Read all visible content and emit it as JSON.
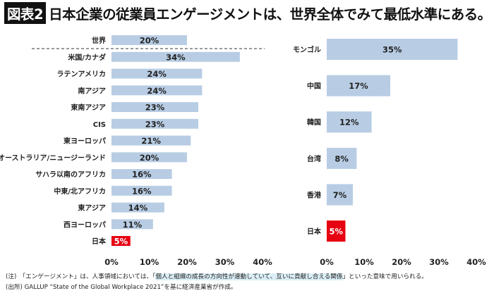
{
  "title": {
    "badge": "図表2",
    "text": "日本企業の従業員エンゲージメントは、世界全体でみて最低水準にある。"
  },
  "colors": {
    "bar": "#b8cde4",
    "highlight": "#e60012",
    "highlight_text": "#ffffff"
  },
  "chart_data": [
    {
      "type": "bar",
      "orientation": "horizontal",
      "categories": [
        "世界",
        "米国/カナダ",
        "ラテンアメリカ",
        "南アジア",
        "東南アジア",
        "CIS",
        "東ヨーロッパ",
        "オーストラリア/ニュージーランド",
        "サハラ以南のアフリカ",
        "中東/北アフリカ",
        "東アジア",
        "西ヨーロッパ",
        "日本"
      ],
      "values": [
        20,
        34,
        24,
        24,
        23,
        23,
        21,
        20,
        16,
        16,
        14,
        11,
        5
      ],
      "labels": [
        "20%",
        "34%",
        "24%",
        "24%",
        "23%",
        "23%",
        "21%",
        "20%",
        "16%",
        "16%",
        "14%",
        "11%",
        "5%"
      ],
      "highlight": "日本",
      "separator_after": "世界",
      "xlim": [
        0,
        40
      ],
      "xticks": [
        "0%",
        "10%",
        "20%",
        "30%",
        "40%"
      ]
    },
    {
      "type": "bar",
      "orientation": "horizontal",
      "categories": [
        "モンゴル",
        "中国",
        "韓国",
        "台湾",
        "香港",
        "日本"
      ],
      "values": [
        35,
        17,
        12,
        8,
        7,
        5
      ],
      "labels": [
        "35%",
        "17%",
        "12%",
        "8%",
        "7%",
        "5%"
      ],
      "highlight": "日本",
      "xlim": [
        0,
        40
      ],
      "xticks": [
        "0%",
        "10%",
        "20%",
        "30%",
        "40%"
      ]
    }
  ],
  "notes": {
    "note_prefix": "(注)　「エンゲージメント」は、人事領域においては、「",
    "note_highlight": "個人と組織の成長の方向性が連動していて、互いに貢献し合える関係",
    "note_suffix": "」といった意味で用いられる。",
    "source": "(出所) GALLUP “State of the Global Workplace 2021”を基に経済産業省が作成。"
  }
}
